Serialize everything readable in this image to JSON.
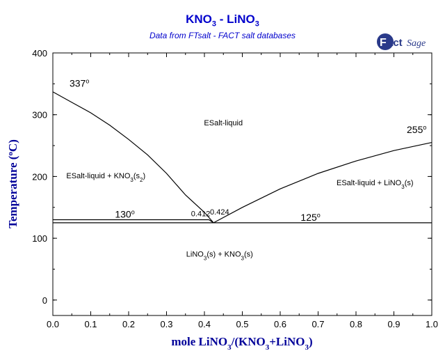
{
  "header": {
    "title": "KNO3 - LiNO3",
    "subtitle": "Data from FTsalt - FACT salt databases",
    "logo_text": "FactSage"
  },
  "colors": {
    "title": "#0000cc",
    "axis_title": "#000099",
    "lines": "#000000"
  },
  "chart_data": {
    "type": "line",
    "title": "KNO3 - LiNO3",
    "subtitle": "Data from FTsalt - FACT salt databases",
    "xlabel": "mole LiNO3/(KNO3+LiNO3)",
    "ylabel": "Temperature (°C)",
    "xlim": [
      0,
      1
    ],
    "ylim": [
      -25,
      400
    ],
    "xticks": [
      "0.0",
      "0.1",
      "0.2",
      "0.3",
      "0.4",
      "0.5",
      "0.6",
      "0.7",
      "0.8",
      "0.9",
      "1.0"
    ],
    "yticks": [
      "0",
      "100",
      "200",
      "300",
      "400"
    ],
    "series": [
      {
        "values": [
          [
            0,
            337
          ],
          [
            0.05,
            320
          ],
          [
            0.1,
            303
          ],
          [
            0.15,
            283
          ],
          [
            0.2,
            260
          ],
          [
            0.25,
            235
          ],
          [
            0.3,
            205
          ],
          [
            0.35,
            170
          ],
          [
            0.4,
            142
          ],
          [
            0.424,
            125
          ]
        ]
      },
      {
        "values": [
          [
            0.424,
            125
          ],
          [
            0.5,
            150
          ],
          [
            0.6,
            180
          ],
          [
            0.7,
            205
          ],
          [
            0.8,
            225
          ],
          [
            0.9,
            242
          ],
          [
            1.0,
            255
          ]
        ]
      },
      {
        "values": [
          [
            0,
            130
          ],
          [
            0.412,
            130
          ]
        ]
      },
      {
        "values": [
          [
            0.412,
            130
          ],
          [
            0.424,
            125
          ]
        ]
      },
      {
        "values": [
          [
            0,
            125
          ],
          [
            1.0,
            125
          ]
        ]
      }
    ],
    "regions": [
      {
        "text": "ESalt-liquid",
        "x": 0.45,
        "y": 283
      },
      {
        "text": "ESalt-liquid + KNO3(s2)",
        "x": 0.14,
        "y": 197
      },
      {
        "text": "ESalt-liquid + LiNO3(s)",
        "x": 0.85,
        "y": 186
      },
      {
        "text": "LiNO3(s) + KNO3(s)",
        "x": 0.44,
        "y": 70
      }
    ],
    "annotations": [
      {
        "text": "337°",
        "x": 0.07,
        "y": 342
      },
      {
        "text": "255°",
        "x": 0.96,
        "y": 267
      },
      {
        "text": "130°",
        "x": 0.19,
        "y": 130
      },
      {
        "text": "125°",
        "x": 0.68,
        "y": 125
      },
      {
        "text": "0.412",
        "x": 0.39,
        "y": 132
      },
      {
        "text": "0.424",
        "x": 0.44,
        "y": 135
      }
    ]
  }
}
